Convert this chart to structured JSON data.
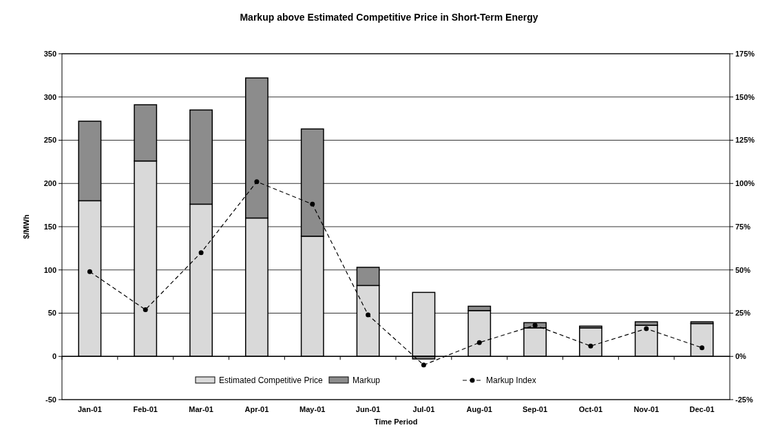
{
  "chart_data": {
    "type": "bar",
    "title": "Markup above Estimated Competitive Price in Short-Term Energy",
    "xlabel": "Time Period",
    "ylabel": "$/MWh",
    "categories": [
      "Jan-01",
      "Feb-01",
      "Mar-01",
      "Apr-01",
      "May-01",
      "Jun-01",
      "Jul-01",
      "Aug-01",
      "Sep-01",
      "Oct-01",
      "Nov-01",
      "Dec-01"
    ],
    "stacked": true,
    "series": [
      {
        "name": "Estimated Competitive Price",
        "color": "#d9d9d9",
        "values": [
          180,
          226,
          176,
          160,
          139,
          82,
          74,
          53,
          33,
          33,
          36,
          38
        ]
      },
      {
        "name": "Markup",
        "color": "#8c8c8c",
        "values": [
          92,
          65,
          109,
          162,
          124,
          21,
          -3,
          5,
          6,
          2,
          4,
          2
        ]
      },
      {
        "name": "Markup Index",
        "type": "line",
        "axis": "y2",
        "color": "#000000",
        "marker": "circle",
        "line_style": "dashed",
        "values": [
          49,
          27,
          60,
          101,
          88,
          24,
          -5,
          8,
          18,
          6,
          16,
          5
        ]
      }
    ],
    "ylim": [
      -50,
      350
    ],
    "yticks": [
      -50,
      0,
      50,
      100,
      150,
      200,
      250,
      300,
      350
    ],
    "y2lim": [
      -25,
      175
    ],
    "y2ticks": [
      {
        "value": -25,
        "label": "-25%"
      },
      {
        "value": 0,
        "label": "0%"
      },
      {
        "value": 25,
        "label": "25%"
      },
      {
        "value": 50,
        "label": "50%"
      },
      {
        "value": 75,
        "label": "75%"
      },
      {
        "value": 100,
        "label": "100%"
      },
      {
        "value": 125,
        "label": "125%"
      },
      {
        "value": 150,
        "label": "150%"
      },
      {
        "value": 175,
        "label": "175%"
      }
    ],
    "grid": "y",
    "legend": "bottom"
  }
}
